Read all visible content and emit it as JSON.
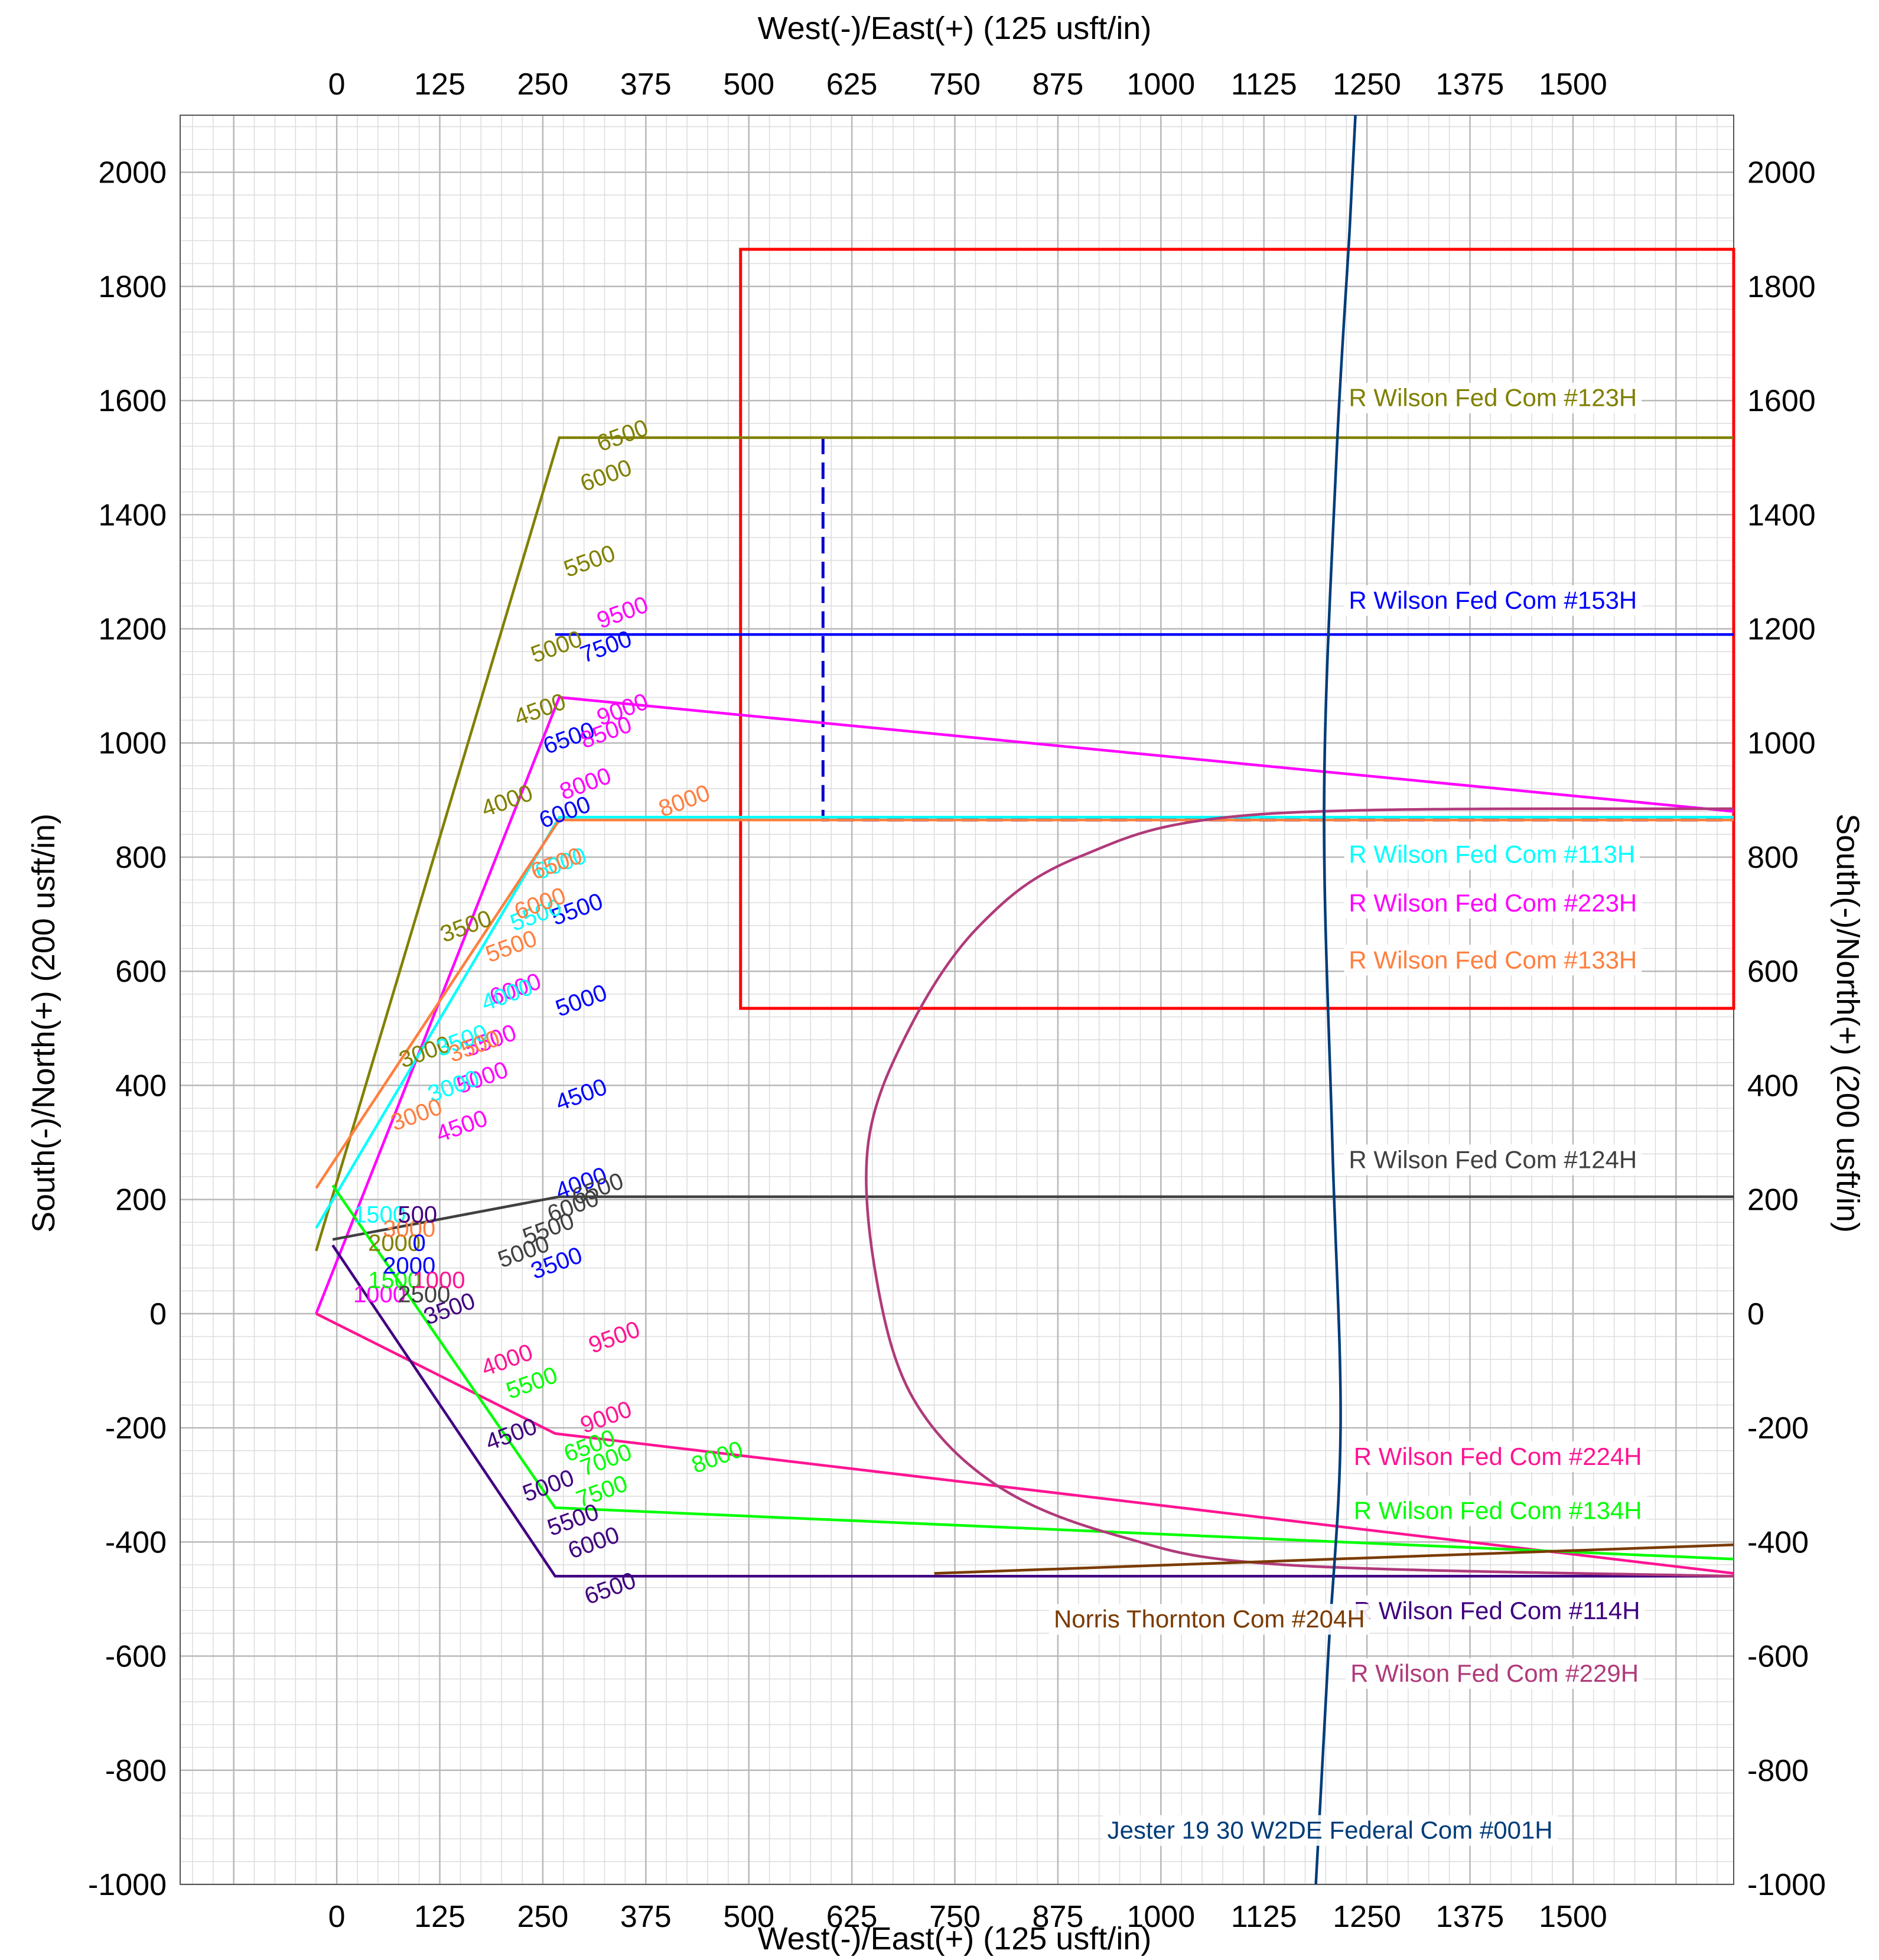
{
  "chart_data": {
    "type": "line",
    "title": "",
    "xlabel": "West(-)/East(+) (125 usft/in)",
    "ylabel": "South(-)/North(+) (200 usft/in)",
    "xlim": [
      -190,
      1695
    ],
    "ylim": [
      -1000,
      2100
    ],
    "xticks": [
      0,
      125,
      250,
      375,
      500,
      625,
      750,
      875,
      1000,
      1125,
      1250,
      1375,
      1500
    ],
    "yticks": [
      -1000,
      -800,
      -600,
      -400,
      -200,
      0,
      200,
      400,
      600,
      800,
      1000,
      1200,
      1400,
      1600,
      1800,
      2000
    ],
    "grid": true,
    "series": [
      {
        "name": "R Wilson Fed Com #123H",
        "color": "#808000",
        "x": [
          -25,
          270,
          1695
        ],
        "y": [
          110,
          1535,
          1535
        ],
        "md": [
          {
            "v": "3000",
            "x": 80,
            "y": 430
          },
          {
            "v": "3500",
            "x": 130,
            "y": 650
          },
          {
            "v": "4000",
            "x": 180,
            "y": 870
          },
          {
            "v": "4500",
            "x": 220,
            "y": 1030
          },
          {
            "v": "5000",
            "x": 240,
            "y": 1140
          },
          {
            "v": "5500",
            "x": 280,
            "y": 1290
          },
          {
            "v": "6000",
            "x": 300,
            "y": 1440
          },
          {
            "v": "6500",
            "x": 320,
            "y": 1510
          }
        ]
      },
      {
        "name": "R Wilson Fed Com #153H",
        "color": "#0000ff",
        "x": [
          265,
          1695
        ],
        "y": [
          1190,
          1190
        ],
        "md": [
          {
            "v": "4000",
            "x": 270,
            "y": 200
          },
          {
            "v": "4500",
            "x": 270,
            "y": 355
          },
          {
            "v": "5000",
            "x": 270,
            "y": 520
          },
          {
            "v": "5500",
            "x": 265,
            "y": 680
          },
          {
            "v": "6000",
            "x": 250,
            "y": 850
          },
          {
            "v": "6500",
            "x": 255,
            "y": 980
          },
          {
            "v": "7500",
            "x": 300,
            "y": 1140
          },
          {
            "v": "3500",
            "x": 240,
            "y": 60
          }
        ]
      },
      {
        "name": "R Wilson Fed Com #223H",
        "color": "#ff00ff",
        "x": [
          -25,
          270,
          1695
        ],
        "y": [
          0,
          1080,
          880
        ],
        "md": [
          {
            "v": "4500",
            "x": 125,
            "y": 300
          },
          {
            "v": "5000",
            "x": 150,
            "y": 385
          },
          {
            "v": "5500",
            "x": 160,
            "y": 450
          },
          {
            "v": "6000",
            "x": 190,
            "y": 540
          },
          {
            "v": "8000",
            "x": 275,
            "y": 900
          },
          {
            "v": "8500",
            "x": 300,
            "y": 990
          },
          {
            "v": "9000",
            "x": 320,
            "y": 1030
          },
          {
            "v": "9500",
            "x": 320,
            "y": 1200
          }
        ]
      },
      {
        "name": "R Wilson Fed Com #113H",
        "color": "#00ffff",
        "x": [
          -25,
          270,
          1695
        ],
        "y": [
          150,
          870,
          870
        ],
        "md": [
          {
            "v": "3000",
            "x": 115,
            "y": 370
          },
          {
            "v": "3500",
            "x": 125,
            "y": 450
          },
          {
            "v": "4000",
            "x": 180,
            "y": 530
          },
          {
            "v": "5500",
            "x": 215,
            "y": 670
          },
          {
            "v": "6000",
            "x": 245,
            "y": 760
          }
        ]
      },
      {
        "name": "R Wilson Fed Com #133H",
        "color": "#ff7f3f",
        "x": [
          -25,
          270,
          1695
        ],
        "y": [
          220,
          865,
          865
        ],
        "md": [
          {
            "v": "3000",
            "x": 70,
            "y": 320
          },
          {
            "v": "3500",
            "x": 140,
            "y": 440
          },
          {
            "v": "5500",
            "x": 185,
            "y": 615
          },
          {
            "v": "6000",
            "x": 220,
            "y": 690
          },
          {
            "v": "6500",
            "x": 240,
            "y": 760
          },
          {
            "v": "8000",
            "x": 395,
            "y": 870
          }
        ]
      },
      {
        "name": "R Wilson Fed Com #124H",
        "color": "#404040",
        "x": [
          -5,
          270,
          1695
        ],
        "y": [
          130,
          205,
          205
        ],
        "md": [
          {
            "v": "5000",
            "x": 200,
            "y": 80
          },
          {
            "v": "5500",
            "x": 230,
            "y": 120
          },
          {
            "v": "6000",
            "x": 260,
            "y": 160
          },
          {
            "v": "6500",
            "x": 290,
            "y": 190
          }
        ]
      },
      {
        "name": "R Wilson Fed Com #224H",
        "color": "#ff1493",
        "x": [
          -25,
          265,
          1695
        ],
        "y": [
          0,
          -210,
          -455
        ],
        "md": [
          {
            "v": "4000",
            "x": 180,
            "y": -110
          },
          {
            "v": "9000",
            "x": 300,
            "y": -210
          },
          {
            "v": "9500",
            "x": 310,
            "y": -70
          }
        ]
      },
      {
        "name": "R Wilson Fed Com #134H",
        "color": "#00ff00",
        "x": [
          -5,
          265,
          1695
        ],
        "y": [
          225,
          -340,
          -430
        ],
        "md": [
          {
            "v": "5500",
            "x": 210,
            "y": -150
          },
          {
            "v": "6500",
            "x": 280,
            "y": -260
          },
          {
            "v": "7000",
            "x": 300,
            "y": -285
          },
          {
            "v": "7500",
            "x": 295,
            "y": -340
          },
          {
            "v": "8000",
            "x": 435,
            "y": -280
          }
        ]
      },
      {
        "name": "R Wilson Fed Com #114H",
        "color": "#400080",
        "x": [
          -5,
          265,
          1695
        ],
        "y": [
          120,
          -460,
          -460
        ],
        "md": [
          {
            "v": "3500",
            "x": 110,
            "y": -20
          },
          {
            "v": "4500",
            "x": 185,
            "y": -240
          },
          {
            "v": "5000",
            "x": 230,
            "y": -330
          },
          {
            "v": "5500",
            "x": 260,
            "y": -390
          },
          {
            "v": "6000",
            "x": 285,
            "y": -430
          },
          {
            "v": "6500",
            "x": 305,
            "y": -510
          }
        ]
      },
      {
        "name": "R Wilson Fed Com #229H",
        "color": "#b03a7a",
        "x": [
          1695,
          1120,
          900,
          780,
          695,
          645,
          655,
          700,
          800,
          950,
          1150,
          1695
        ],
        "y": [
          885,
          875,
          800,
          680,
          500,
          300,
          60,
          -150,
          -300,
          -390,
          -440,
          -460
        ],
        "md": []
      },
      {
        "name": "Norris Thornton Com #204H",
        "color": "#7a3b00",
        "x": [
          725,
          1695
        ],
        "y": [
          -455,
          -405
        ],
        "md": []
      },
      {
        "name": "Jester 19 30 W2DE Federal Com #001H",
        "color": "#003c78",
        "x": [
          1188,
          1203,
          1218,
          1208,
          1198,
          1213,
          1229,
          1236
        ],
        "y": [
          -1000,
          -600,
          -200,
          300,
          900,
          1500,
          1900,
          2100
        ],
        "md": []
      }
    ],
    "lease_box": {
      "color": "#ff0000",
      "x": [
        490,
        1695
      ],
      "y": [
        535,
        1865
      ]
    },
    "dashed_line": {
      "color": "#0000cc",
      "x": [
        590,
        590,
        1695
      ],
      "y": [
        1535,
        865,
        865
      ]
    },
    "cluster_labels": [
      "1000",
      "1500",
      "2000",
      "2500",
      "1000",
      "1500",
      "2000",
      "3000",
      "500",
      "0"
    ]
  },
  "labels": [
    {
      "text": "R Wilson Fed Com #123H",
      "color": "#808000",
      "x": 1228,
      "y": 1590
    },
    {
      "text": "R Wilson Fed Com #153H",
      "color": "#0000ff",
      "x": 1228,
      "y": 1235
    },
    {
      "text": "R Wilson Fed Com #113H",
      "color": "#00ffff",
      "x": 1228,
      "y": 790
    },
    {
      "text": "R Wilson Fed Com #223H",
      "color": "#ff00ff",
      "x": 1228,
      "y": 705
    },
    {
      "text": "R Wilson Fed Com #133H",
      "color": "#ff7f3f",
      "x": 1228,
      "y": 605
    },
    {
      "text": "R Wilson Fed Com #124H",
      "color": "#404040",
      "x": 1228,
      "y": 255
    },
    {
      "text": "R Wilson Fed Com #224H",
      "color": "#ff1493",
      "x": 1234,
      "y": -265
    },
    {
      "text": "R Wilson Fed Com #134H",
      "color": "#00ff00",
      "x": 1234,
      "y": -360
    },
    {
      "text": "R Wilson Fed Com #114H",
      "color": "#400080",
      "x": 1234,
      "y": -535
    },
    {
      "text": "R Wilson Fed Com #229H",
      "color": "#b03a7a",
      "x": 1230,
      "y": -645
    },
    {
      "text": "Norris Thornton Com #204H",
      "color": "#7a3b00",
      "x": 870,
      "y": -550
    },
    {
      "text": "Jester 19 30 W2DE Federal Com #001H",
      "color": "#003c78",
      "x": 935,
      "y": -920
    }
  ]
}
